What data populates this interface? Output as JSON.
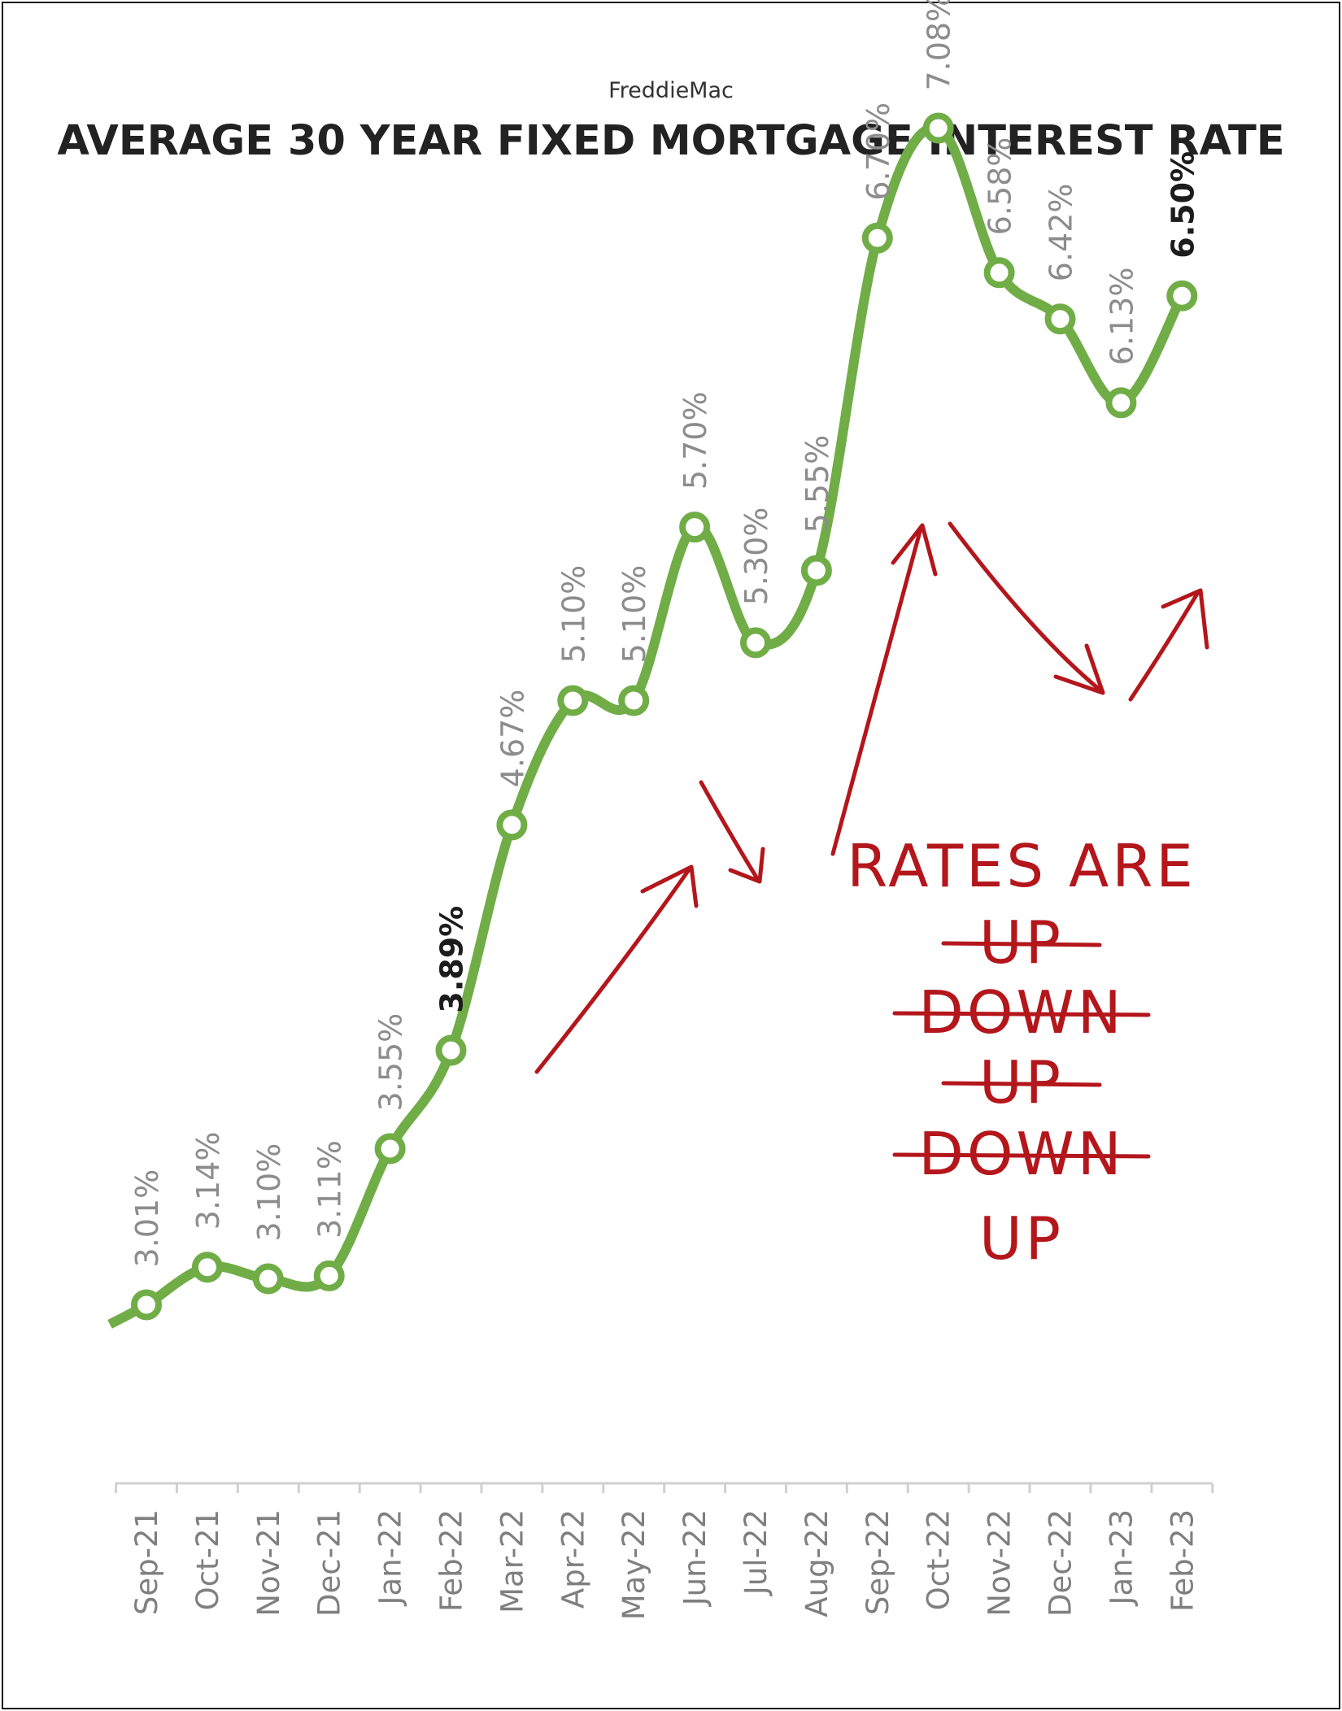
{
  "source_label": "FreddieMac",
  "chart_data": {
    "type": "line",
    "title": "AVERAGE 30 YEAR FIXED MORTGAGE INTEREST RATE",
    "subtitle": "FreddieMac",
    "categories": [
      "Sep-21",
      "Oct-21",
      "Nov-21",
      "Dec-21",
      "Jan-22",
      "Feb-22",
      "Mar-22",
      "Apr-22",
      "May-22",
      "Jun-22",
      "Jul-22",
      "Aug-22",
      "Sep-22",
      "Oct-22",
      "Nov-22",
      "Dec-22",
      "Jan-23",
      "Feb-23"
    ],
    "series": [
      {
        "values": [
          3.01,
          3.14,
          3.1,
          3.11,
          3.55,
          3.89,
          4.67,
          5.1,
          5.1,
          5.7,
          5.3,
          5.55,
          6.7,
          7.08,
          6.58,
          6.42,
          6.13,
          6.5
        ],
        "data_labels": [
          "3.01%",
          "3.14%",
          "3.10%",
          "3.11%",
          "3.55%",
          "3.89%",
          "4.67%",
          "5.10%",
          "5.10%",
          "5.70%",
          "5.30%",
          "5.55%",
          "6.70%",
          "7.08%",
          "6.58%",
          "6.42%",
          "6.13%",
          "6.50%"
        ],
        "highlighted": [
          "Feb-22",
          "Feb-23"
        ],
        "color": "#70ad47"
      }
    ],
    "label_color": "#8c8c8c",
    "highlight_label_color": "#1c1c1c",
    "annotation_color": "#b3161b",
    "grid": false,
    "legend": "none"
  },
  "annotation": {
    "heading": "RATES ARE",
    "words": [
      {
        "text": "UP",
        "struck": true
      },
      {
        "text": "DOWN",
        "struck": true
      },
      {
        "text": "UP",
        "struck": true
      },
      {
        "text": "DOWN",
        "struck": true
      },
      {
        "text": "UP",
        "struck": false
      }
    ]
  }
}
